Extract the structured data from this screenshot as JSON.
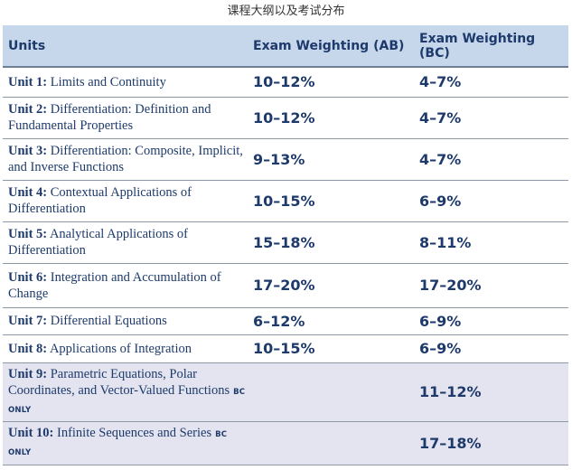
{
  "caption": "课程大纲以及考试分布",
  "table": {
    "headers": [
      "Units",
      "Exam Weighting (AB)",
      "Exam Weighting (BC)"
    ],
    "rows": [
      {
        "unit": "Unit 1:",
        "title": "Limits and Continuity",
        "ab": "10–12%",
        "bc": "4–7%",
        "bc_only": ""
      },
      {
        "unit": "Unit 2:",
        "title": "Differentiation: Definition and Fundamental Properties",
        "ab": "10–12%",
        "bc": "4–7%",
        "bc_only": ""
      },
      {
        "unit": "Unit 3:",
        "title": "Differentiation: Composite, Implicit, and Inverse Functions",
        "ab": "9–13%",
        "bc": "4–7%",
        "bc_only": ""
      },
      {
        "unit": "Unit 4:",
        "title": "Contextual Applications of Differentiation",
        "ab": "10–15%",
        "bc": "6–9%",
        "bc_only": ""
      },
      {
        "unit": "Unit 5:",
        "title": "Analytical Applications of Differentiation",
        "ab": "15–18%",
        "bc": "8–11%",
        "bc_only": ""
      },
      {
        "unit": "Unit 6:",
        "title": "Integration and Accumulation of Change",
        "ab": "17–20%",
        "bc": "17–20%",
        "bc_only": ""
      },
      {
        "unit": "Unit 7:",
        "title": "Differential Equations",
        "ab": "6–12%",
        "bc": "6–9%",
        "bc_only": ""
      },
      {
        "unit": "Unit 8:",
        "title": "Applications of Integration",
        "ab": "10–15%",
        "bc": "6–9%",
        "bc_only": ""
      },
      {
        "unit": "Unit 9:",
        "title": "Parametric Equations, Polar Coordinates, and Vector-Valued Functions",
        "ab": "",
        "bc": "11–12%",
        "bc_only": "BC ONLY"
      },
      {
        "unit": "Unit 10:",
        "title": "Infinite Sequences and Series",
        "ab": "",
        "bc": "17–18%",
        "bc_only": "BC ONLY"
      }
    ]
  }
}
